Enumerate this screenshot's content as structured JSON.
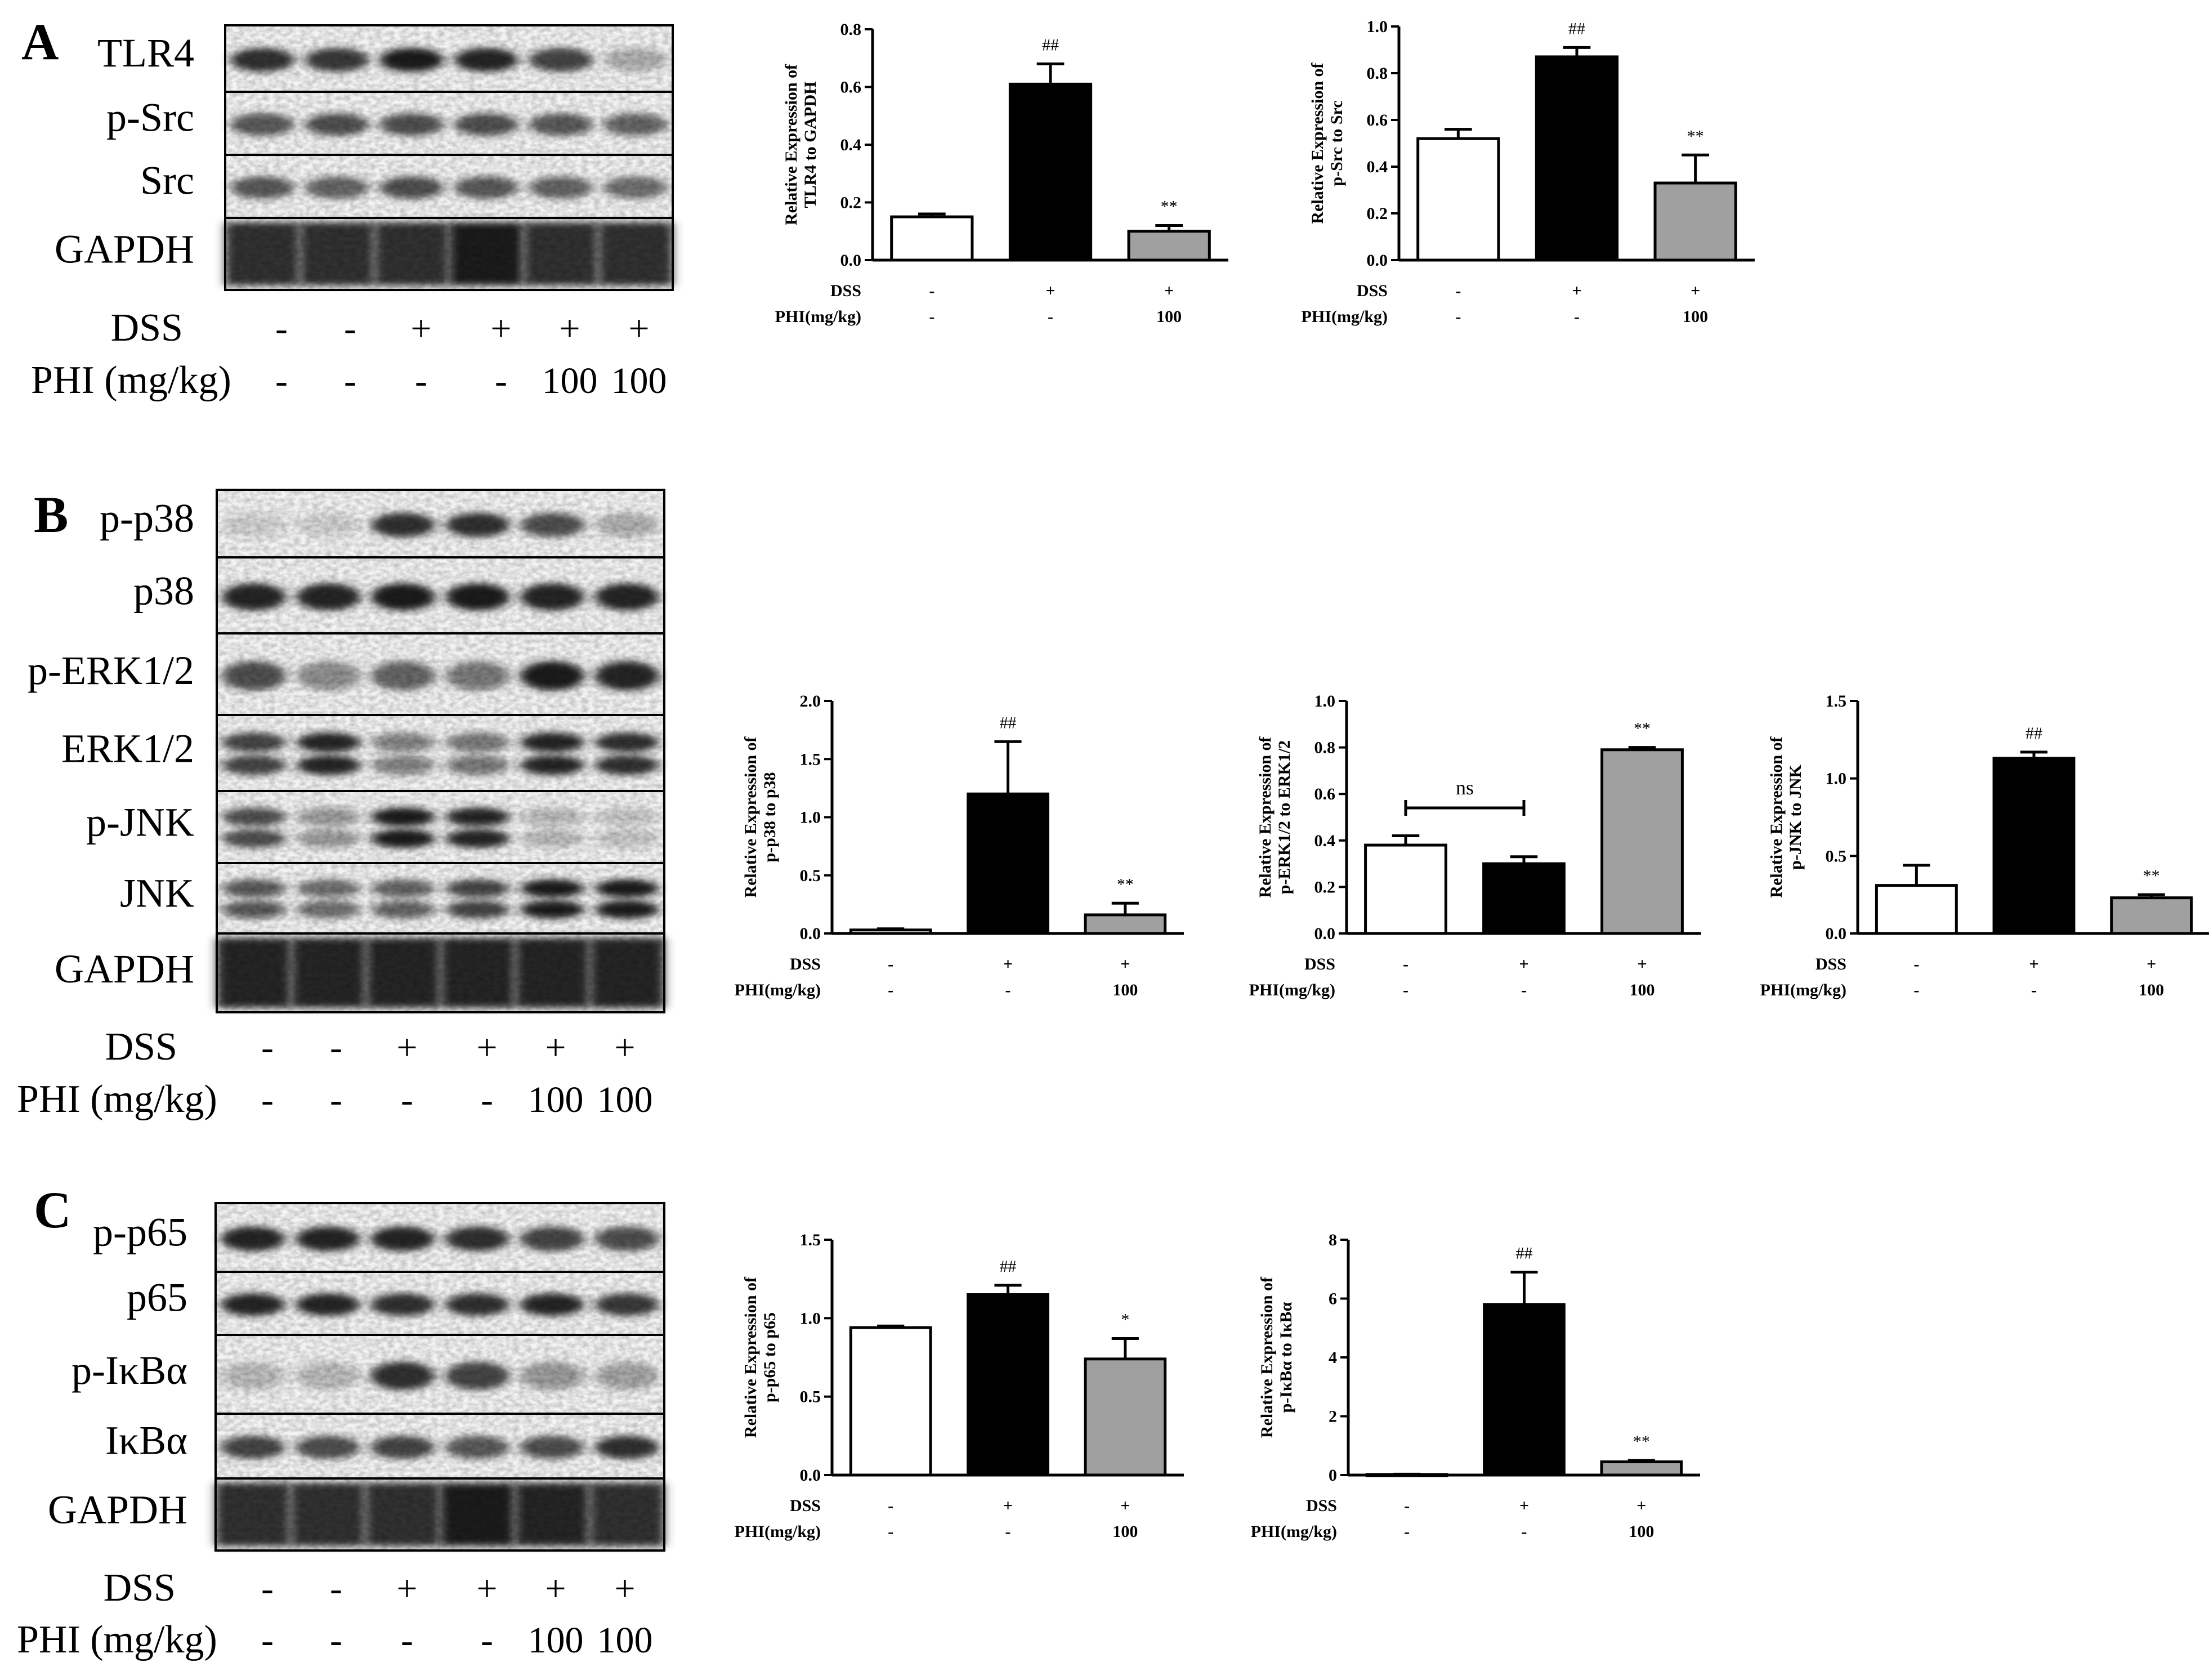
{
  "panels": [
    {
      "letter": "A",
      "blot": {
        "rows": [
          "TLR4",
          "p-Src",
          "Src",
          "GAPDH"
        ],
        "row_kind": [
          "band",
          "band",
          "band",
          "noisy"
        ],
        "intensity": [
          [
            0.85,
            0.8,
            0.95,
            0.9,
            0.75,
            0.25
          ],
          [
            0.65,
            0.7,
            0.7,
            0.7,
            0.65,
            0.6
          ],
          [
            0.65,
            0.6,
            0.7,
            0.65,
            0.6,
            0.55
          ],
          [
            0.85,
            0.85,
            0.85,
            0.95,
            0.85,
            0.85
          ]
        ],
        "lane_labels": {
          "dss_label": "DSS",
          "phi_label": "PHI (mg/kg)",
          "dss": [
            "-",
            "-",
            "+",
            "+",
            "+",
            "+"
          ],
          "phi": [
            "-",
            "-",
            "-",
            "-",
            "100",
            "100"
          ]
        }
      }
    },
    {
      "letter": "B",
      "blot": {
        "rows": [
          "p-p38",
          "p38",
          "p-ERK1/2",
          "ERK1/2",
          "p-JNK",
          "JNK",
          "GAPDH"
        ],
        "row_kind": [
          "band",
          "band",
          "band",
          "double",
          "double",
          "double",
          "noisy"
        ],
        "intensity": [
          [
            0.1,
            0.1,
            0.85,
            0.85,
            0.7,
            0.25
          ],
          [
            0.9,
            0.9,
            0.95,
            0.95,
            0.9,
            0.9
          ],
          [
            0.7,
            0.4,
            0.6,
            0.5,
            0.95,
            0.9
          ],
          [
            0.75,
            0.9,
            0.45,
            0.5,
            0.9,
            0.85
          ],
          [
            0.7,
            0.35,
            0.95,
            0.9,
            0.2,
            0.15
          ],
          [
            0.65,
            0.55,
            0.6,
            0.75,
            0.95,
            0.95
          ],
          [
            0.9,
            0.9,
            0.9,
            0.9,
            0.9,
            0.9
          ]
        ],
        "lane_labels": {
          "dss_label": "DSS",
          "phi_label": "PHI (mg/kg)",
          "dss": [
            "-",
            "-",
            "+",
            "+",
            "+",
            "+"
          ],
          "phi": [
            "-",
            "-",
            "-",
            "-",
            "100",
            "100"
          ]
        }
      }
    },
    {
      "letter": "C",
      "blot": {
        "rows": [
          "p-p65",
          "p65",
          "p-IκBα",
          "IκBα",
          "GAPDH"
        ],
        "row_kind": [
          "band",
          "band",
          "band",
          "band",
          "noisy"
        ],
        "intensity": [
          [
            0.9,
            0.9,
            0.9,
            0.85,
            0.75,
            0.7
          ],
          [
            0.9,
            0.9,
            0.85,
            0.85,
            0.9,
            0.8
          ],
          [
            0.2,
            0.2,
            0.85,
            0.75,
            0.35,
            0.3
          ],
          [
            0.75,
            0.7,
            0.75,
            0.65,
            0.7,
            0.85
          ],
          [
            0.85,
            0.85,
            0.85,
            0.95,
            0.9,
            0.85
          ]
        ],
        "lane_labels": {
          "dss_label": "DSS",
          "phi_label": "PHI (mg/kg)",
          "dss": [
            "-",
            "-",
            "+",
            "+",
            "+",
            "+"
          ],
          "phi": [
            "-",
            "-",
            "-",
            "-",
            "100",
            "100"
          ]
        }
      }
    }
  ],
  "colors": {
    "bar_control": "#ffffff",
    "bar_dss": "#000000",
    "bar_phi": "#a0a0a0",
    "ink": "#000000"
  },
  "chart_data": [
    {
      "type": "bar",
      "panel": "A",
      "ylabel": "Relative Expression of TLR4 to GAPDH",
      "ylabel_lines": [
        "Relative Expression of",
        "TLR4 to GAPDH"
      ],
      "ylim": [
        0,
        0.8
      ],
      "ticks": [
        "0.0",
        "0.2",
        "0.4",
        "0.6",
        "0.8"
      ],
      "values": [
        0.15,
        0.61,
        0.1
      ],
      "errors": [
        0.01,
        0.07,
        0.02
      ],
      "marks": [
        "",
        "##",
        "**"
      ],
      "dss_label": "DSS",
      "phi_label": "PHI(mg/kg)",
      "dss": [
        "-",
        "+",
        "+"
      ],
      "phi": [
        "-",
        "-",
        "100"
      ]
    },
    {
      "type": "bar",
      "panel": "A",
      "ylabel": "Relative Expression of p-Src to Src",
      "ylabel_lines": [
        "Relative Expression of",
        "p-Src to Src"
      ],
      "ylim": [
        0,
        1.0
      ],
      "ticks": [
        "0.0",
        "0.2",
        "0.4",
        "0.6",
        "0.8",
        "1.0"
      ],
      "values": [
        0.52,
        0.87,
        0.33
      ],
      "errors": [
        0.04,
        0.04,
        0.12
      ],
      "marks": [
        "",
        "##",
        "**"
      ],
      "dss_label": "DSS",
      "phi_label": "PHI(mg/kg)",
      "dss": [
        "-",
        "+",
        "+"
      ],
      "phi": [
        "-",
        "-",
        "100"
      ]
    },
    {
      "type": "bar",
      "panel": "B",
      "ylabel": "Relative Expression of p-p38 to p38",
      "ylabel_lines": [
        "Relative Expression of",
        "p-p38 to p38"
      ],
      "ylim": [
        0,
        2.0
      ],
      "ticks": [
        "0.0",
        "0.5",
        "1.0",
        "1.5",
        "2.0"
      ],
      "values": [
        0.03,
        1.2,
        0.16
      ],
      "errors": [
        0.01,
        0.45,
        0.1
      ],
      "marks": [
        "",
        "##",
        "**"
      ],
      "dss_label": "DSS",
      "phi_label": "PHI(mg/kg)",
      "dss": [
        "-",
        "+",
        "+"
      ],
      "phi": [
        "-",
        "-",
        "100"
      ]
    },
    {
      "type": "bar",
      "panel": "B",
      "ylabel": "Relative Expression of p-ERK1/2 to ERK1/2",
      "ylabel_lines": [
        "Relative Expression of",
        "p-ERK1/2 to ERK1/2"
      ],
      "ylim": [
        0,
        1.0
      ],
      "ticks": [
        "0.0",
        "0.2",
        "0.4",
        "0.6",
        "0.8",
        "1.0"
      ],
      "values": [
        0.38,
        0.3,
        0.79
      ],
      "errors": [
        0.04,
        0.03,
        0.01
      ],
      "marks": [
        "",
        "",
        "**"
      ],
      "bracket": {
        "from": 0,
        "to": 1,
        "y": 0.54,
        "label": "ns"
      },
      "dss_label": "DSS",
      "phi_label": "PHI(mg/kg)",
      "dss": [
        "-",
        "+",
        "+"
      ],
      "phi": [
        "-",
        "-",
        "100"
      ]
    },
    {
      "type": "bar",
      "panel": "B",
      "ylabel": "Relative Expression of p-JNK to JNK",
      "ylabel_lines": [
        "Relative Expression of",
        "p-JNK to JNK"
      ],
      "ylim": [
        0,
        1.5
      ],
      "ticks": [
        "0.0",
        "0.5",
        "1.0",
        "1.5"
      ],
      "values": [
        0.31,
        1.13,
        0.23
      ],
      "errors": [
        0.13,
        0.04,
        0.02
      ],
      "marks": [
        "",
        "##",
        "**"
      ],
      "dss_label": "DSS",
      "phi_label": "PHI(mg/kg)",
      "dss": [
        "-",
        "+",
        "+"
      ],
      "phi": [
        "-",
        "-",
        "100"
      ]
    },
    {
      "type": "bar",
      "panel": "C",
      "ylabel": "Relative Expression of p-p65 to p65",
      "ylabel_lines": [
        "Relative Expression of",
        "p-p65 to p65"
      ],
      "ylim": [
        0,
        1.5
      ],
      "ticks": [
        "0.0",
        "0.5",
        "1.0",
        "1.5"
      ],
      "values": [
        0.94,
        1.15,
        0.74
      ],
      "errors": [
        0.01,
        0.06,
        0.13
      ],
      "marks": [
        "",
        "##",
        "*"
      ],
      "dss_label": "DSS",
      "phi_label": "PHI(mg/kg)",
      "dss": [
        "-",
        "+",
        "+"
      ],
      "phi": [
        "-",
        "-",
        "100"
      ]
    },
    {
      "type": "bar",
      "panel": "C",
      "ylabel": "Relative Expression of p-IκBα to IκBα",
      "ylabel_lines": [
        "Relative Expression of",
        "p-IκBα to IκBα"
      ],
      "ylim": [
        0,
        8
      ],
      "ticks": [
        "0",
        "2",
        "4",
        "6",
        "8"
      ],
      "values": [
        0.02,
        5.8,
        0.45
      ],
      "errors": [
        0.01,
        1.1,
        0.05
      ],
      "marks": [
        "",
        "##",
        "**"
      ],
      "dss_label": "DSS",
      "phi_label": "PHI(mg/kg)",
      "dss": [
        "-",
        "+",
        "+"
      ],
      "phi": [
        "-",
        "-",
        "100"
      ]
    }
  ]
}
